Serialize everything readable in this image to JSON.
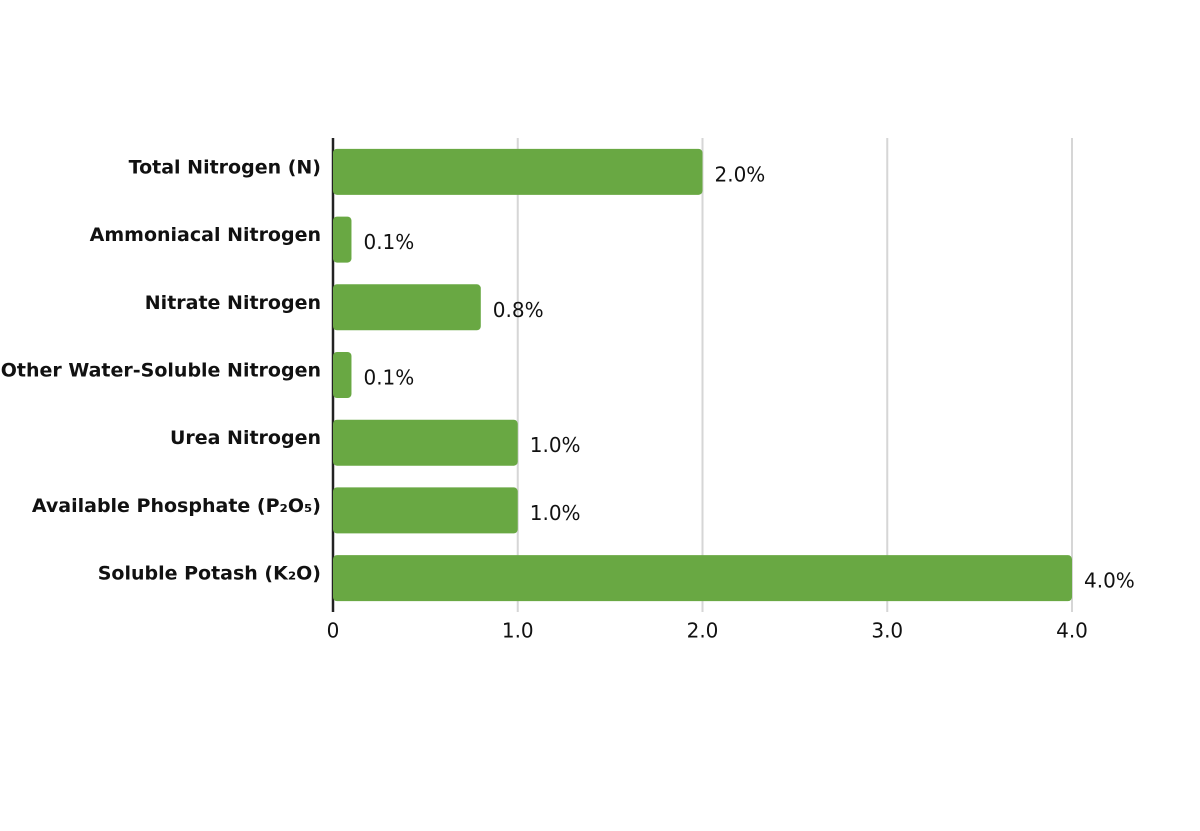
{
  "chart_data": {
    "type": "bar",
    "orientation": "horizontal",
    "categories": [
      "Total Nitrogen (N)",
      "Ammoniacal Nitrogen",
      "Nitrate Nitrogen",
      "Other Water-Soluble Nitrogen",
      "Urea Nitrogen",
      "Available Phosphate (P₂O₅)",
      "Soluble Potash (K₂O)"
    ],
    "values": [
      2.0,
      0.1,
      0.8,
      0.1,
      1.0,
      1.0,
      4.0
    ],
    "value_labels": [
      "2.0%",
      "0.1%",
      "0.8%",
      "0.1%",
      "1.0%",
      "1.0%",
      "4.0%"
    ],
    "color": "#69a843",
    "xlim": [
      0,
      4
    ],
    "xticks": [
      0,
      {
        "value": 1,
        "label": "1.0"
      },
      {
        "value": 2,
        "label": "2.0"
      },
      {
        "value": 3,
        "label": "3.0"
      },
      {
        "value": 4,
        "label": "4.0"
      }
    ],
    "grid": true
  }
}
